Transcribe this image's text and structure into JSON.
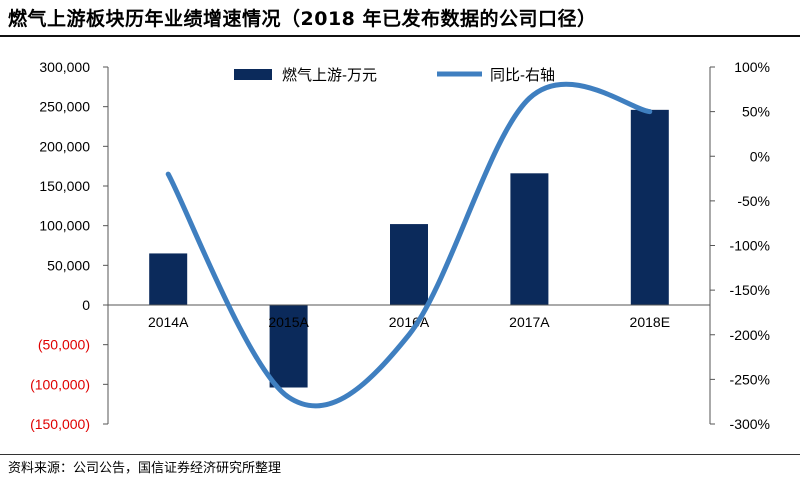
{
  "title": "燃气上游板块历年业绩增速情况（2018 年已发布数据的公司口径）",
  "source": "资料来源：公司公告，国信证券经济研究所整理",
  "colors": {
    "bar": "#0b2a5b",
    "line": "#3f7fc0",
    "negative_tick": "#e00000",
    "axis": "#555555"
  },
  "chart_data": {
    "type": "bar",
    "categories": [
      "2014A",
      "2015A",
      "2016A",
      "2017A",
      "2018E"
    ],
    "series": [
      {
        "name": "燃气上游-万元",
        "type": "bar",
        "axis": "left",
        "values": [
          65000,
          -104000,
          102000,
          166000,
          246000
        ]
      },
      {
        "name": "同比-右轴",
        "type": "line",
        "axis": "right",
        "smooth": true,
        "values": [
          -20,
          -270,
          -200,
          65,
          50
        ]
      }
    ],
    "left_axis": {
      "min": -150000,
      "max": 300000,
      "ticks": [
        300000,
        250000,
        200000,
        150000,
        100000,
        50000,
        0,
        -50000,
        -100000,
        -150000
      ],
      "tick_labels": [
        "300,000",
        "250,000",
        "200,000",
        "150,000",
        "100,000",
        "50,000",
        "0",
        "(50,000)",
        "(100,000)",
        "(150,000)"
      ]
    },
    "right_axis": {
      "min": -300,
      "max": 100,
      "unit": "%",
      "ticks": [
        100,
        50,
        0,
        -50,
        -100,
        -150,
        -200,
        -250,
        -300
      ],
      "tick_labels": [
        "100%",
        "50%",
        "0%",
        "-50%",
        "-100%",
        "-150%",
        "-200%",
        "-250%",
        "-300%"
      ]
    },
    "legend_position": "top",
    "grid": false
  }
}
